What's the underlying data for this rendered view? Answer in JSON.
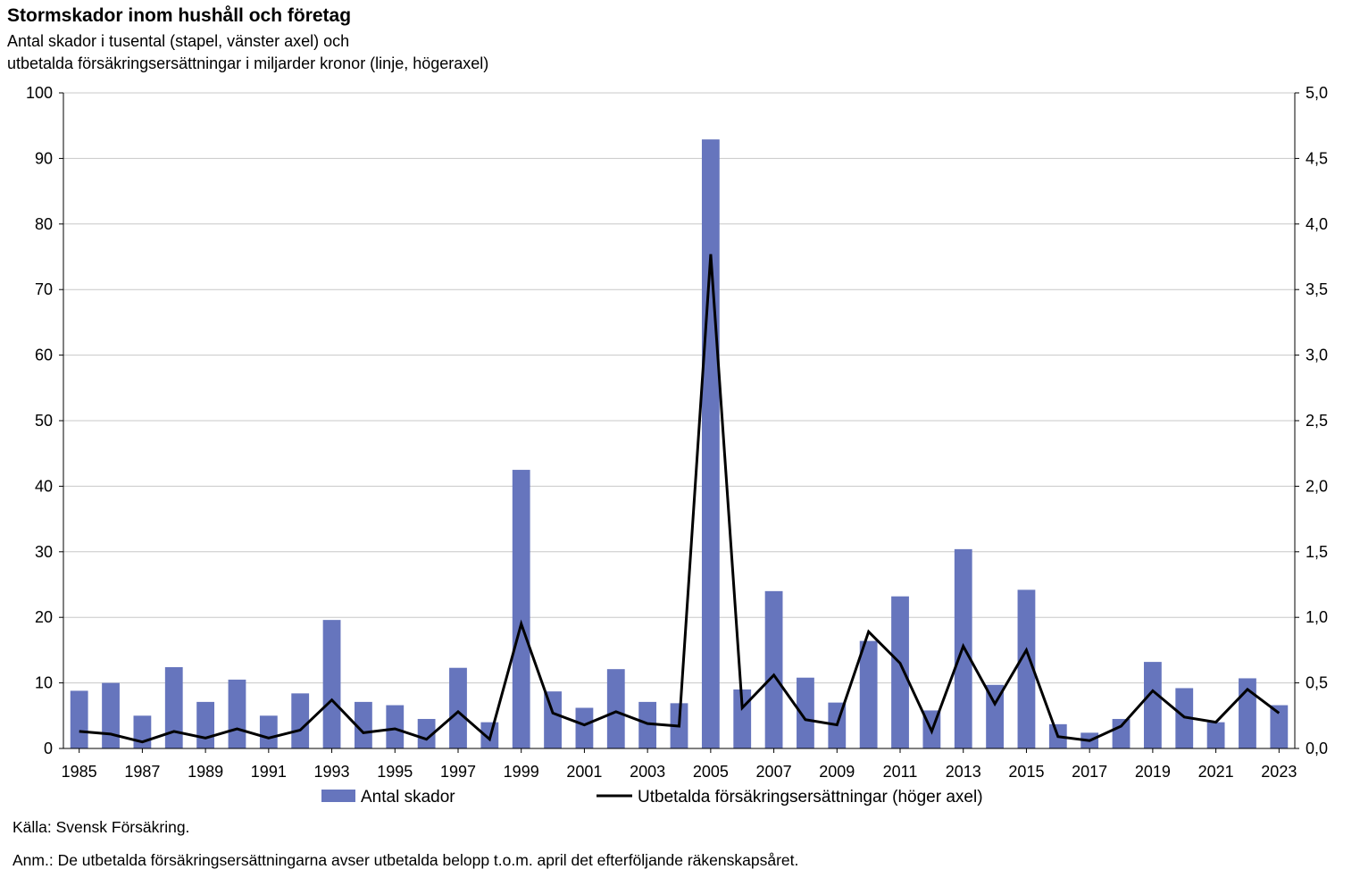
{
  "title": "Stormskador inom hushåll och företag",
  "subtitle_line1": "Antal skador i tusental (stapel, vänster axel) och",
  "subtitle_line2": "utbetalda försäkringsersättningar i miljarder kronor (linje, högeraxel)",
  "source": "Källa: Svensk Försäkring.",
  "note": "Anm.: De utbetalda försäkringsersättningarna avser utbetalda belopp t.o.m. april det efterföljande räkenskapsåret.",
  "colors": {
    "bar": "#6675bd",
    "line": "#000000",
    "grid": "#c8c8c8"
  },
  "chart_data": {
    "type": "bar",
    "categories": [
      "1985",
      "1986",
      "1987",
      "1988",
      "1989",
      "1990",
      "1991",
      "1992",
      "1993",
      "1994",
      "1995",
      "1996",
      "1997",
      "1998",
      "1999",
      "2000",
      "2001",
      "2002",
      "2003",
      "2004",
      "2005",
      "2006",
      "2007",
      "2008",
      "2009",
      "2010",
      "2011",
      "2012",
      "2013",
      "2014",
      "2015",
      "2016",
      "2017",
      "2018",
      "2019",
      "2020",
      "2021",
      "2022",
      "2023"
    ],
    "x_tick_labels": [
      "1985",
      "1987",
      "1989",
      "1991",
      "1993",
      "1995",
      "1997",
      "1999",
      "2001",
      "2003",
      "2005",
      "2007",
      "2009",
      "2011",
      "2013",
      "2015",
      "2017",
      "2019",
      "2021",
      "2023"
    ],
    "series": [
      {
        "name": "Antal skador",
        "type": "bar",
        "axis": "left",
        "values": [
          8.8,
          10.0,
          5.0,
          12.4,
          7.1,
          10.5,
          5.0,
          8.4,
          19.6,
          7.1,
          6.6,
          4.5,
          12.3,
          4.0,
          42.5,
          8.7,
          6.2,
          12.1,
          7.1,
          6.9,
          92.9,
          9.0,
          24.0,
          10.8,
          7.0,
          16.4,
          23.2,
          5.8,
          30.4,
          9.7,
          24.2,
          3.7,
          2.4,
          4.5,
          13.2,
          9.2,
          4.0,
          10.7,
          6.6
        ]
      },
      {
        "name": "Utbetalda försäkringsersättningar (höger axel)",
        "type": "line",
        "axis": "right",
        "values": [
          0.13,
          0.11,
          0.05,
          0.13,
          0.08,
          0.15,
          0.08,
          0.14,
          0.37,
          0.12,
          0.15,
          0.07,
          0.28,
          0.07,
          0.95,
          0.27,
          0.18,
          0.28,
          0.19,
          0.17,
          3.77,
          0.31,
          0.56,
          0.22,
          0.18,
          0.89,
          0.65,
          0.13,
          0.78,
          0.34,
          0.75,
          0.09,
          0.06,
          0.17,
          0.44,
          0.24,
          0.2,
          0.45,
          0.27
        ]
      }
    ],
    "left_axis": {
      "min": 0,
      "max": 100,
      "tick_labels": [
        "0",
        "10",
        "20",
        "30",
        "40",
        "50",
        "60",
        "70",
        "80",
        "90",
        "100"
      ]
    },
    "right_axis": {
      "min": 0,
      "max": 5,
      "tick_labels": [
        "0,0",
        "0,5",
        "1,0",
        "1,5",
        "2,0",
        "2,5",
        "3,0",
        "3,5",
        "4,0",
        "4,5",
        "5,0"
      ]
    },
    "grid": true,
    "legend_position": "bottom"
  }
}
